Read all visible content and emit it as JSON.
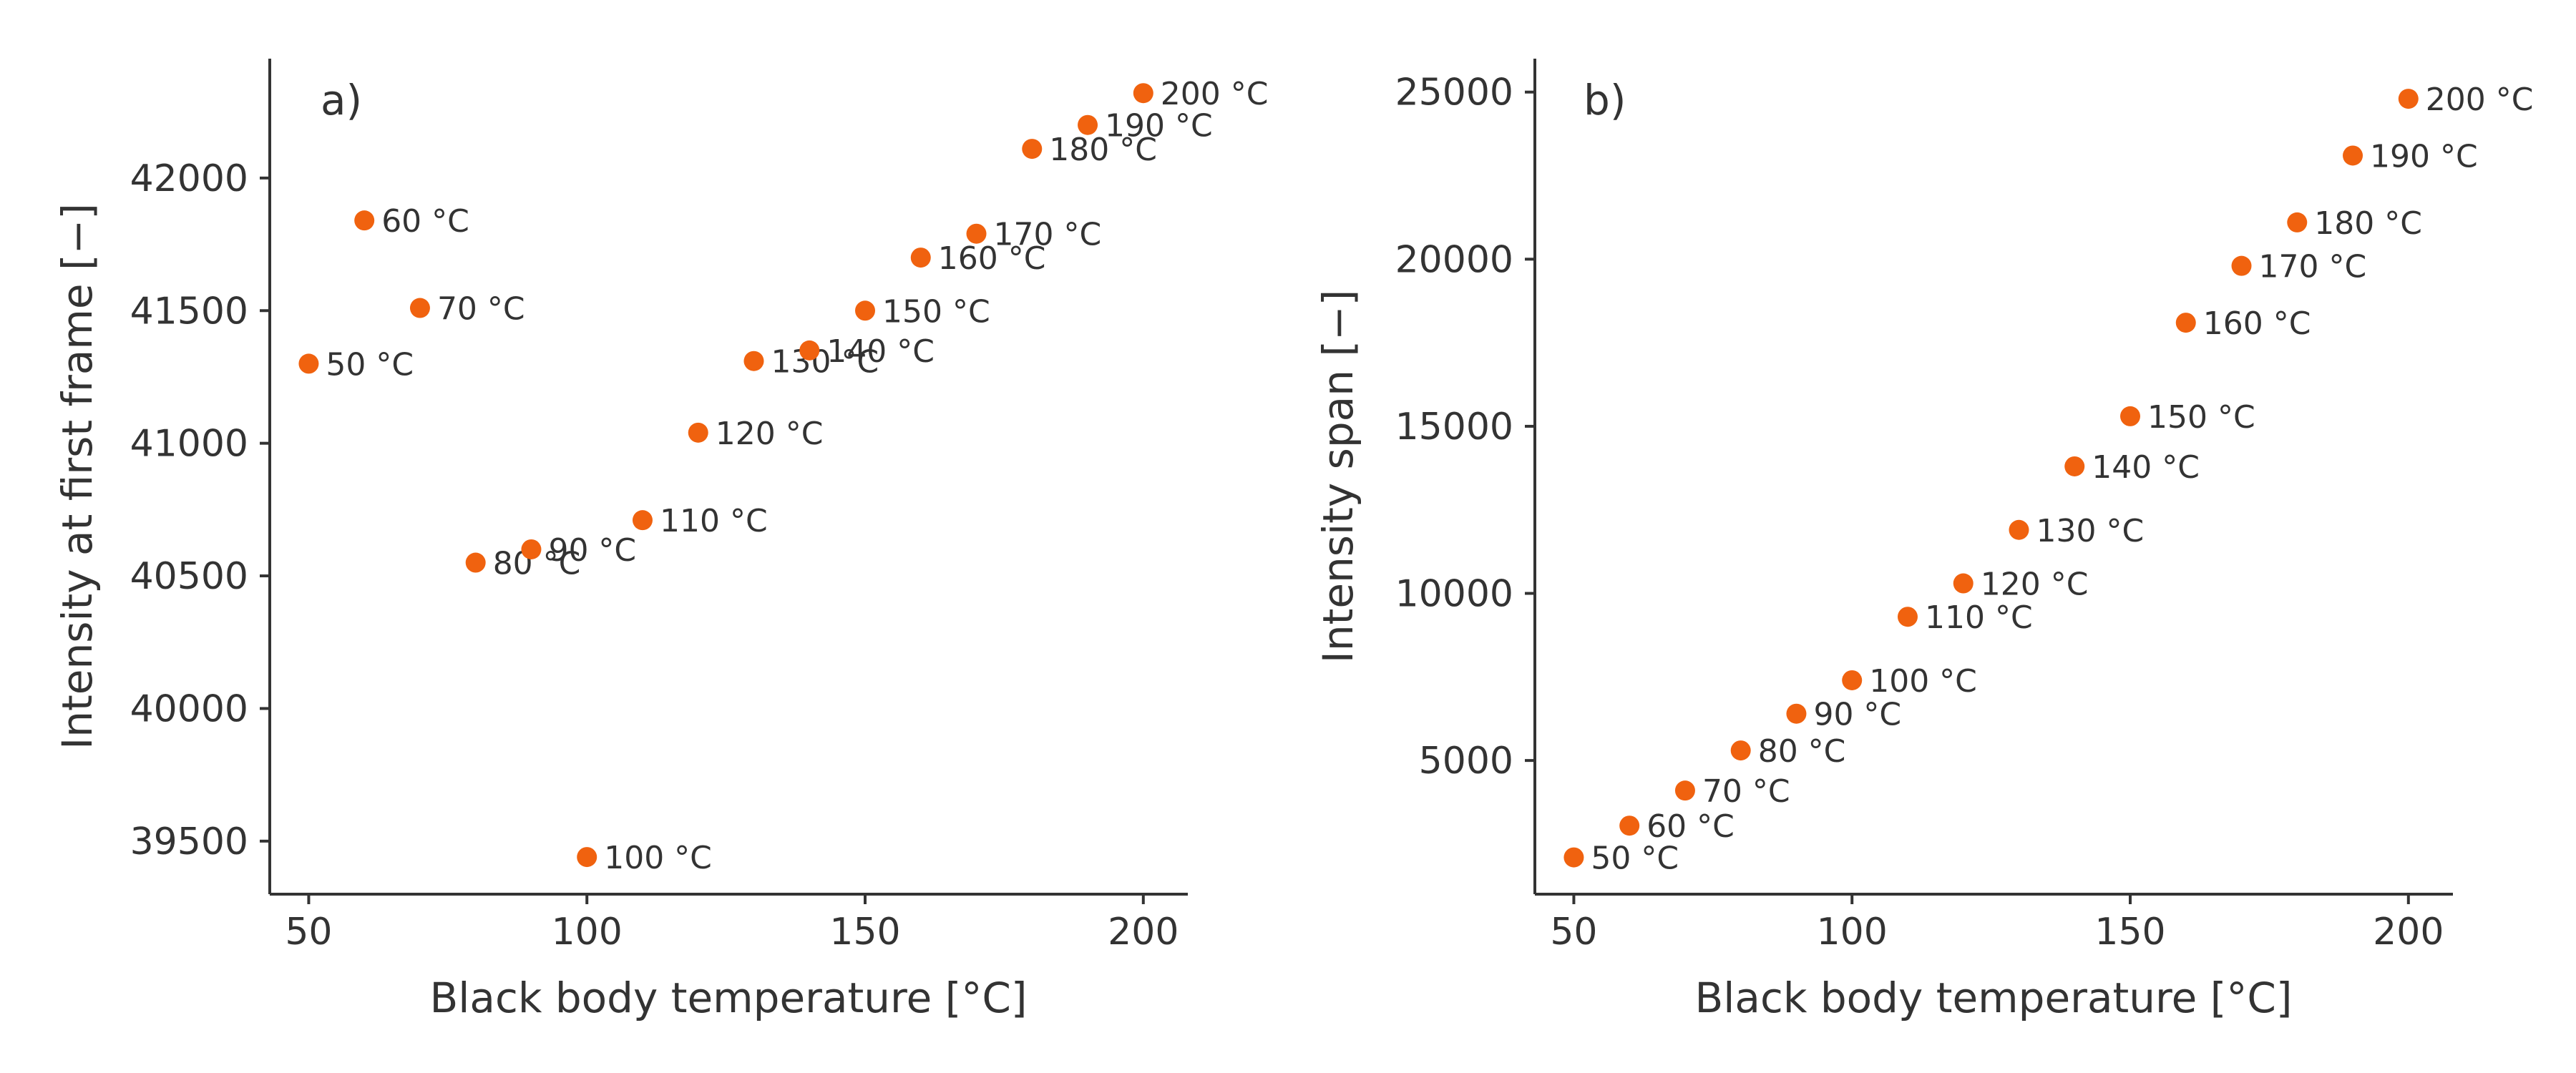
{
  "chart_data": [
    {
      "type": "scatter",
      "panel_label": "a)",
      "xlabel": "Black body temperature [°C]",
      "ylabel": "Intensity at first frame [−]",
      "xlim": [
        43,
        208
      ],
      "ylim": [
        39300,
        42450
      ],
      "xticks": [
        50,
        100,
        150,
        200
      ],
      "yticks": [
        39500,
        40000,
        40500,
        41000,
        41500,
        42000
      ],
      "grid": false,
      "marker_color": "#F0620F",
      "points": [
        {
          "x": 50,
          "y": 41300,
          "label": "50 °C"
        },
        {
          "x": 60,
          "y": 41840,
          "label": "60 °C"
        },
        {
          "x": 70,
          "y": 41510,
          "label": "70 °C"
        },
        {
          "x": 80,
          "y": 40550,
          "label": "80 °C"
        },
        {
          "x": 90,
          "y": 40600,
          "label": "90 °C"
        },
        {
          "x": 100,
          "y": 39440,
          "label": "100 °C"
        },
        {
          "x": 110,
          "y": 40710,
          "label": "110 °C"
        },
        {
          "x": 120,
          "y": 41040,
          "label": "120 °C"
        },
        {
          "x": 130,
          "y": 41310,
          "label": "130 °C"
        },
        {
          "x": 140,
          "y": 41350,
          "label": "140 °C"
        },
        {
          "x": 150,
          "y": 41500,
          "label": "150 °C"
        },
        {
          "x": 160,
          "y": 41700,
          "label": "160 °C"
        },
        {
          "x": 170,
          "y": 41790,
          "label": "170 °C"
        },
        {
          "x": 180,
          "y": 42110,
          "label": "180 °C"
        },
        {
          "x": 190,
          "y": 42200,
          "label": "190 °C"
        },
        {
          "x": 200,
          "y": 42320,
          "label": "200 °C"
        }
      ]
    },
    {
      "type": "scatter",
      "panel_label": "b)",
      "xlabel": "Black body temperature [°C]",
      "ylabel": "Intensity span [−]",
      "xlim": [
        43,
        208
      ],
      "ylim": [
        1000,
        26000
      ],
      "xticks": [
        50,
        100,
        150,
        200
      ],
      "yticks": [
        5000,
        10000,
        15000,
        20000,
        25000
      ],
      "grid": false,
      "marker_color": "#F0620F",
      "points": [
        {
          "x": 50,
          "y": 2100,
          "label": "50 °C"
        },
        {
          "x": 60,
          "y": 3050,
          "label": "60 °C"
        },
        {
          "x": 70,
          "y": 4100,
          "label": "70 °C"
        },
        {
          "x": 80,
          "y": 5300,
          "label": "80 °C"
        },
        {
          "x": 90,
          "y": 6400,
          "label": "90 °C"
        },
        {
          "x": 100,
          "y": 7400,
          "label": "100 °C"
        },
        {
          "x": 110,
          "y": 9300,
          "label": "110 °C"
        },
        {
          "x": 120,
          "y": 10300,
          "label": "120 °C"
        },
        {
          "x": 130,
          "y": 11900,
          "label": "130 °C"
        },
        {
          "x": 140,
          "y": 13800,
          "label": "140 °C"
        },
        {
          "x": 150,
          "y": 15300,
          "label": "150 °C"
        },
        {
          "x": 160,
          "y": 18100,
          "label": "160 °C"
        },
        {
          "x": 170,
          "y": 19800,
          "label": "170 °C"
        },
        {
          "x": 180,
          "y": 21100,
          "label": "180 °C"
        },
        {
          "x": 190,
          "y": 23100,
          "label": "190 °C"
        },
        {
          "x": 200,
          "y": 24800,
          "label": "200 °C"
        }
      ]
    }
  ]
}
